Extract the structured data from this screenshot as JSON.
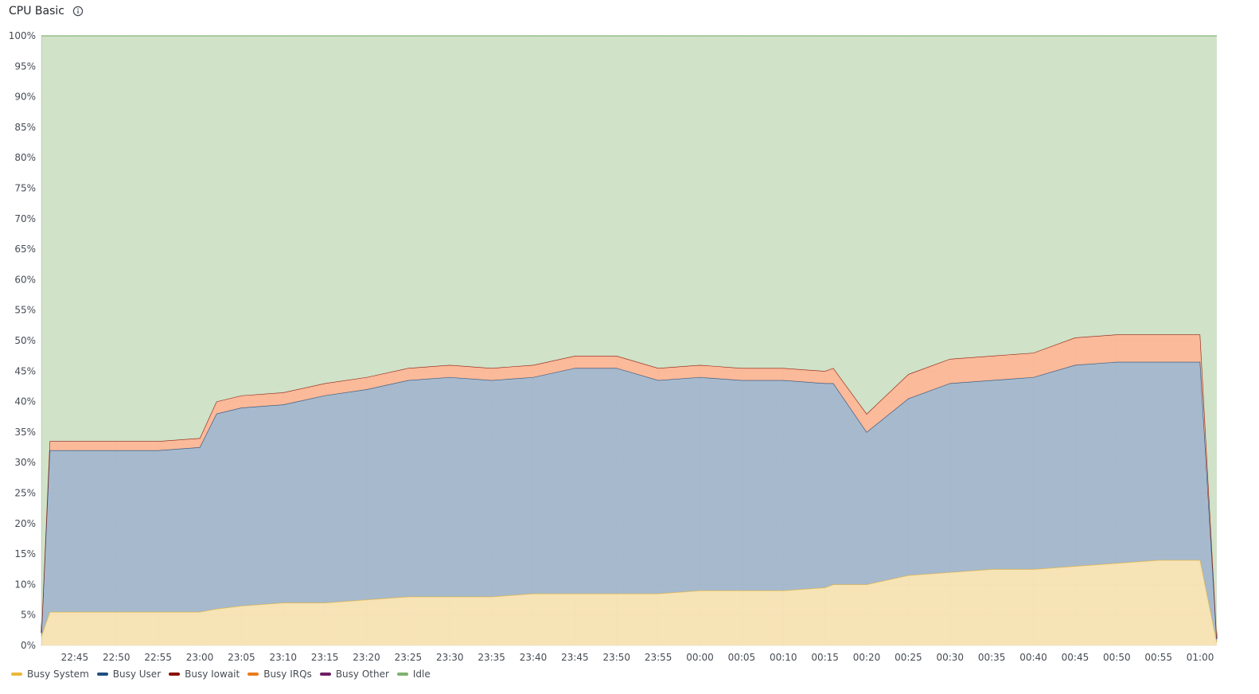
{
  "panel": {
    "title": "CPU Basic",
    "info_icon": "info-circle-icon"
  },
  "chart_data": {
    "type": "area",
    "stacked": true,
    "title": "CPU Basic",
    "xlabel": "",
    "ylabel": "",
    "ylim": [
      0,
      100
    ],
    "y_unit": "%",
    "yticks": [
      "0%",
      "5%",
      "10%",
      "15%",
      "20%",
      "25%",
      "30%",
      "35%",
      "40%",
      "45%",
      "50%",
      "55%",
      "60%",
      "65%",
      "70%",
      "75%",
      "80%",
      "85%",
      "90%",
      "95%",
      "100%"
    ],
    "xticks": [
      "22:45",
      "22:50",
      "22:55",
      "23:00",
      "23:05",
      "23:10",
      "23:15",
      "23:20",
      "23:25",
      "23:30",
      "23:35",
      "23:40",
      "23:45",
      "23:50",
      "23:55",
      "00:00",
      "00:05",
      "00:10",
      "00:15",
      "00:20",
      "00:25",
      "00:30",
      "00:35",
      "00:40",
      "00:45",
      "00:50",
      "00:55",
      "01:00"
    ],
    "grid": true,
    "legend_position": "bottom-left",
    "x": [
      "22:41",
      "22:42",
      "22:45",
      "22:50",
      "22:55",
      "23:00",
      "23:02",
      "23:05",
      "23:10",
      "23:15",
      "23:20",
      "23:25",
      "23:30",
      "23:35",
      "23:40",
      "23:45",
      "23:50",
      "23:55",
      "00:00",
      "00:05",
      "00:10",
      "00:15",
      "00:16",
      "00:20",
      "00:25",
      "00:30",
      "00:35",
      "00:40",
      "00:45",
      "00:50",
      "00:55",
      "01:00",
      "01:02"
    ],
    "series": [
      {
        "name": "Busy System",
        "color": "#eab839",
        "fill": "#f5e0ae",
        "values": [
          1.5,
          5.5,
          5.5,
          5.5,
          5.5,
          5.5,
          6.0,
          6.5,
          7.0,
          7.0,
          7.5,
          8.0,
          8.0,
          8.0,
          8.5,
          8.5,
          8.5,
          8.5,
          9.0,
          9.0,
          9.0,
          9.5,
          10.0,
          10.0,
          11.5,
          12.0,
          12.5,
          12.5,
          13.0,
          13.5,
          14.0,
          14.0,
          0.5
        ]
      },
      {
        "name": "Busy User",
        "color": "#1f4e80",
        "fill": "#9db2c8",
        "values": [
          0.5,
          26.5,
          26.5,
          26.5,
          26.5,
          27.0,
          32.0,
          32.5,
          32.5,
          34.0,
          34.5,
          35.5,
          36.0,
          35.5,
          35.5,
          37.0,
          37.0,
          35.0,
          35.0,
          34.5,
          34.5,
          33.5,
          33.0,
          25.0,
          29.0,
          31.0,
          31.0,
          31.5,
          33.0,
          33.0,
          32.5,
          32.5,
          0.5
        ]
      },
      {
        "name": "Busy Iowait",
        "color": "#890f02",
        "fill": "#fbb38f",
        "values": [
          0.2,
          1.5,
          1.5,
          1.5,
          1.5,
          1.5,
          2.0,
          2.0,
          2.0,
          2.0,
          2.0,
          2.0,
          2.0,
          2.0,
          2.0,
          2.0,
          2.0,
          2.0,
          2.0,
          2.0,
          2.0,
          2.0,
          2.5,
          3.0,
          4.0,
          4.0,
          4.0,
          4.0,
          4.5,
          4.5,
          4.5,
          4.5,
          0.2
        ]
      },
      {
        "name": "Busy IRQs",
        "color": "#eb7b18",
        "fill": "#eb7b18",
        "values": [
          0,
          0,
          0,
          0,
          0,
          0,
          0,
          0,
          0,
          0,
          0,
          0,
          0,
          0,
          0,
          0,
          0,
          0,
          0,
          0,
          0,
          0,
          0,
          0,
          0,
          0,
          0,
          0,
          0,
          0,
          0,
          0,
          0
        ]
      },
      {
        "name": "Busy Other",
        "color": "#6d1f62",
        "fill": "#6d1f62",
        "values": [
          0,
          0,
          0,
          0,
          0,
          0,
          0,
          0,
          0,
          0,
          0,
          0,
          0,
          0,
          0,
          0,
          0,
          0,
          0,
          0,
          0,
          0,
          0,
          0,
          0,
          0,
          0,
          0,
          0,
          0,
          0,
          0,
          0
        ]
      },
      {
        "name": "Idle",
        "color": "#7eb26d",
        "fill": "#cde0c5",
        "values": [
          97.8,
          66.5,
          66.5,
          66.5,
          66.5,
          66.0,
          60.0,
          59.0,
          58.5,
          57.0,
          56.0,
          54.5,
          54.0,
          54.5,
          54.0,
          52.5,
          52.5,
          54.5,
          54.0,
          54.5,
          54.5,
          55.0,
          54.5,
          62.0,
          55.5,
          53.0,
          52.5,
          52.0,
          49.5,
          49.0,
          49.0,
          49.0,
          98.8
        ]
      }
    ]
  },
  "legend": [
    {
      "label": "Busy System",
      "color": "#eab839"
    },
    {
      "label": "Busy User",
      "color": "#1f4e80"
    },
    {
      "label": "Busy Iowait",
      "color": "#890f02"
    },
    {
      "label": "Busy IRQs",
      "color": "#eb7b18"
    },
    {
      "label": "Busy Other",
      "color": "#6d1f62"
    },
    {
      "label": "Idle",
      "color": "#7eb26d"
    }
  ]
}
